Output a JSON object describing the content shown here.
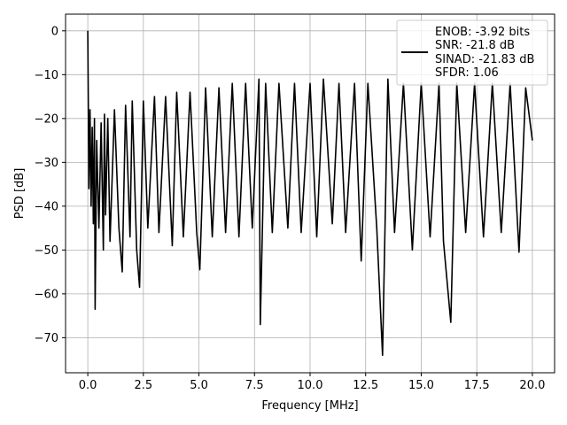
{
  "chart_data": {
    "type": "line",
    "xlabel": "Frequency [MHz]",
    "ylabel": "PSD [dB]",
    "xlim": [
      -1.0,
      21.0
    ],
    "ylim": [
      -78.0,
      3.8
    ],
    "x_ticks": [
      0.0,
      2.5,
      5.0,
      7.5,
      10.0,
      12.5,
      15.0,
      17.5,
      20.0
    ],
    "x_tick_labels": [
      "0.0",
      "2.5",
      "5.0",
      "7.5",
      "10.0",
      "12.5",
      "15.0",
      "17.5",
      "20.0"
    ],
    "y_ticks": [
      0,
      -10,
      -20,
      -30,
      -40,
      -50,
      -60,
      -70
    ],
    "y_tick_labels": [
      "0",
      "−10",
      "−20",
      "−30",
      "−40",
      "−50",
      "−60",
      "−70"
    ],
    "grid": true,
    "legend_position": "top-right",
    "series_color": "#000000",
    "legend": {
      "lines": [
        "ENOB: -3.92 bits",
        "SNR: -21.8 dB",
        "SINAD: -21.83 dB",
        "SFDR: 1.06"
      ]
    },
    "series": [
      {
        "x": [
          0.0,
          0.02,
          0.05,
          0.1,
          0.15,
          0.2,
          0.25,
          0.3,
          0.33,
          0.4,
          0.5,
          0.6,
          0.7,
          0.75,
          0.8,
          0.9,
          1.0,
          1.2,
          1.4,
          1.55,
          1.7,
          1.9,
          2.0,
          2.2,
          2.33,
          2.5,
          2.7,
          3.0,
          3.2,
          3.5,
          3.8,
          4.0,
          4.3,
          4.6,
          4.9,
          5.04,
          5.3,
          5.6,
          5.9,
          6.2,
          6.5,
          6.8,
          7.1,
          7.4,
          7.7,
          7.76,
          8.0,
          8.3,
          8.6,
          9.0,
          9.3,
          9.6,
          10.0,
          10.3,
          10.6,
          11.0,
          11.3,
          11.6,
          12.0,
          12.3,
          12.6,
          13.0,
          13.26,
          13.5,
          13.8,
          14.2,
          14.6,
          15.0,
          15.4,
          15.8,
          16.0,
          16.33,
          16.6,
          17.0,
          17.4,
          17.8,
          18.2,
          18.6,
          19.0,
          19.4,
          19.7,
          20.0
        ],
        "y": [
          0.0,
          -14.0,
          -36.0,
          -18.0,
          -40.0,
          -22.0,
          -44.0,
          -20.0,
          -63.5,
          -25.0,
          -45.0,
          -21.0,
          -50.0,
          -19.0,
          -42.0,
          -20.0,
          -48.0,
          -18.0,
          -45.0,
          -55.0,
          -17.0,
          -47.0,
          -16.0,
          -50.0,
          -58.5,
          -16.0,
          -45.0,
          -15.0,
          -46.0,
          -15.0,
          -49.0,
          -14.0,
          -47.0,
          -14.0,
          -46.0,
          -54.5,
          -13.0,
          -47.0,
          -13.0,
          -46.0,
          -12.0,
          -47.0,
          -12.0,
          -45.0,
          -11.0,
          -67.0,
          -12.0,
          -46.0,
          -12.0,
          -45.0,
          -12.0,
          -46.0,
          -12.0,
          -47.0,
          -11.0,
          -44.0,
          -12.0,
          -46.0,
          -12.0,
          -52.5,
          -12.0,
          -45.0,
          -74.0,
          -11.0,
          -46.0,
          -12.0,
          -50.0,
          -12.0,
          -47.0,
          -12.0,
          -48.0,
          -66.5,
          -12.0,
          -46.0,
          -12.0,
          -47.0,
          -12.0,
          -46.0,
          -12.0,
          -50.5,
          -13.0,
          -25.0
        ]
      }
    ]
  }
}
